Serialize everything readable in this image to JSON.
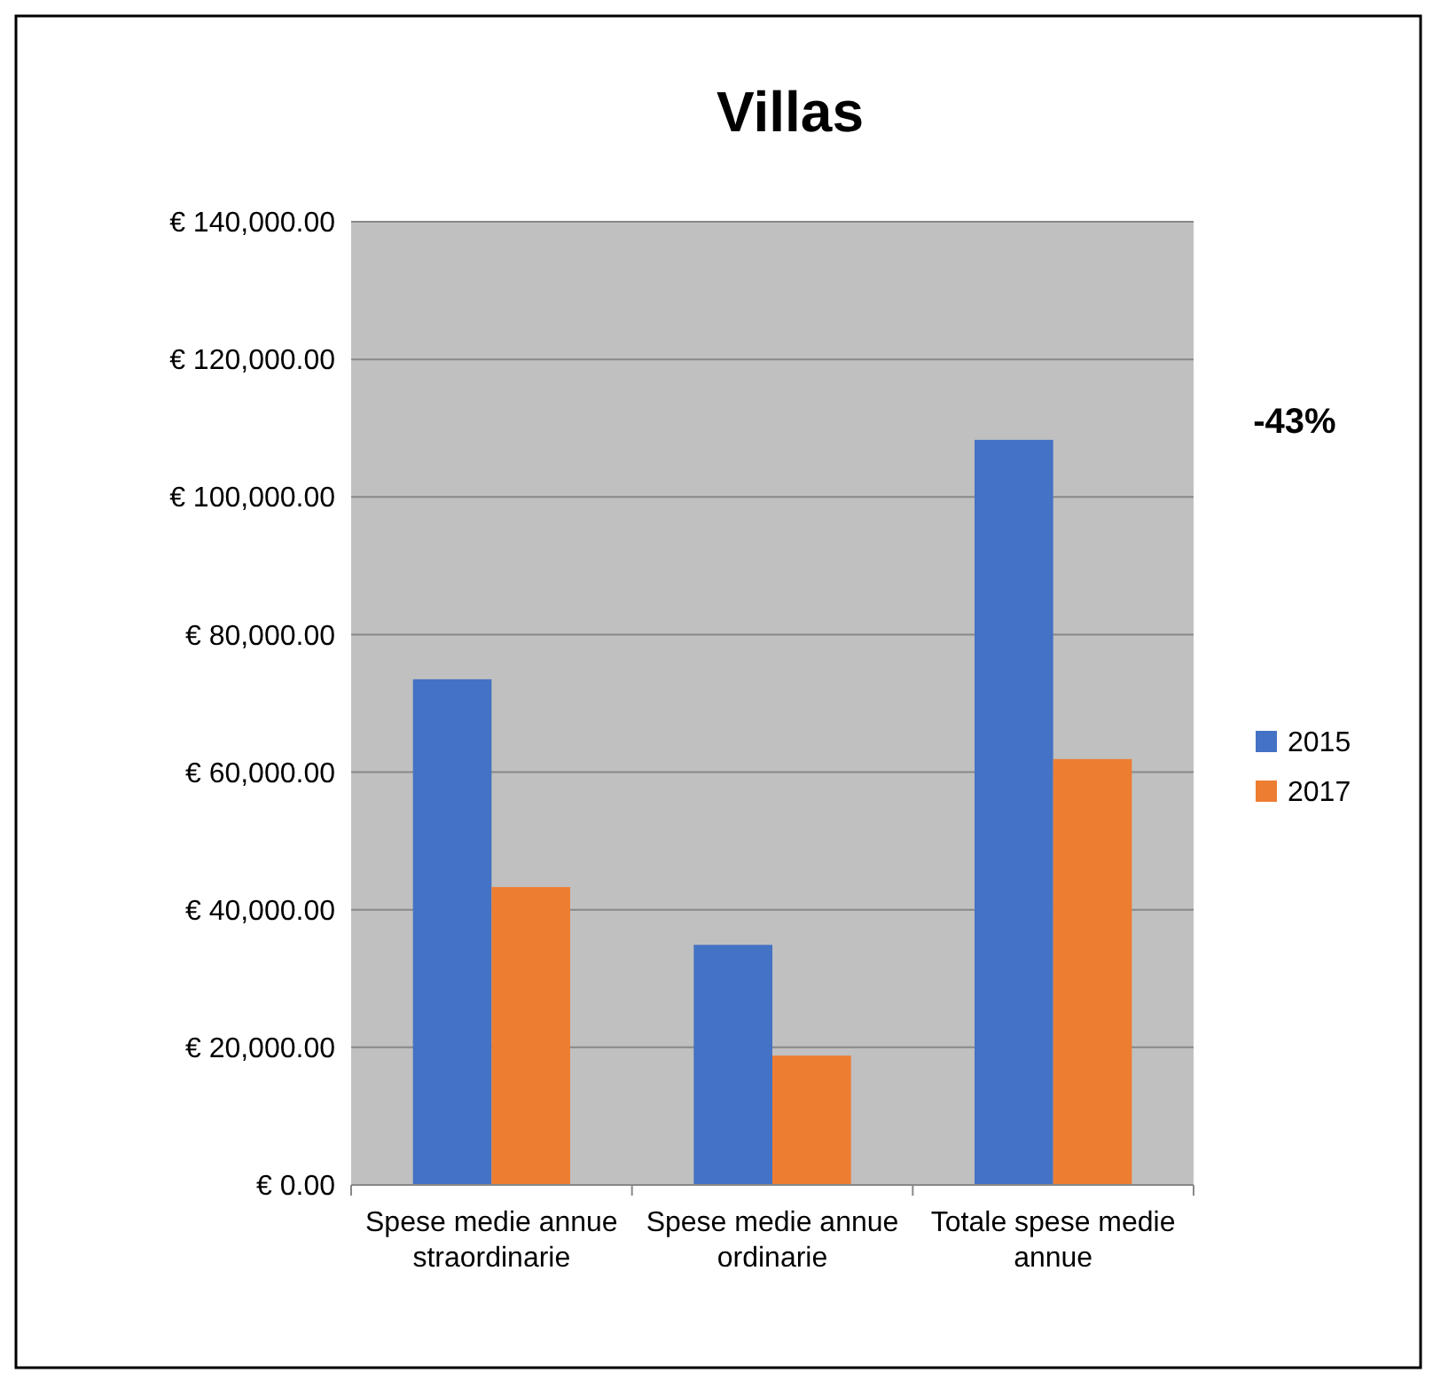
{
  "chart_data": {
    "type": "bar",
    "title": "Villas",
    "categories": [
      "Spese medie annue straordinarie",
      "Spese medie annue ordinarie",
      "Totale spese medie annue"
    ],
    "series": [
      {
        "name": "2015",
        "color": "#4472c4",
        "values": [
          73500,
          34900,
          108300
        ]
      },
      {
        "name": "2017",
        "color": "#ed7d31",
        "values": [
          43300,
          18800,
          61900
        ]
      }
    ],
    "ylim": [
      0,
      140000
    ],
    "yticks": [
      {
        "value": 0,
        "label": "€ 0.00"
      },
      {
        "value": 20000,
        "label": "€ 20,000.00"
      },
      {
        "value": 40000,
        "label": "€ 40,000.00"
      },
      {
        "value": 60000,
        "label": "€ 60,000.00"
      },
      {
        "value": 80000,
        "label": "€ 80,000.00"
      },
      {
        "value": 100000,
        "label": "€ 100,000.00"
      },
      {
        "value": 120000,
        "label": "€ 120,000.00"
      },
      {
        "value": 140000,
        "label": "€ 140,000.00"
      }
    ],
    "grid": "y",
    "legend": "right",
    "annotations": [
      "-43%"
    ]
  }
}
